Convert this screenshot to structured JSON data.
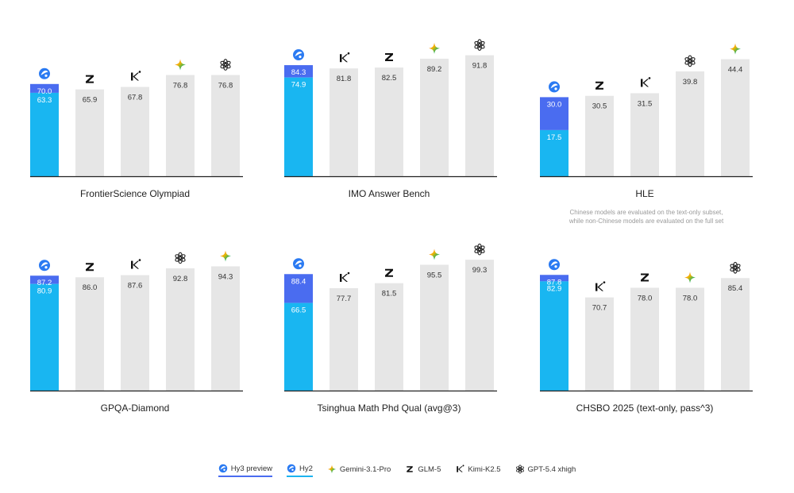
{
  "colors": {
    "hy3": "#4a6cf0",
    "hy2": "#19b6f1",
    "other": "#e6e6e6",
    "axis": "#222222"
  },
  "legend": [
    {
      "model": "hy3",
      "label": "Hy3 preview",
      "icon": "hy-logo-icon"
    },
    {
      "model": "hy2",
      "label": "Hy2",
      "icon": "hy-logo-icon"
    },
    {
      "model": "gemini",
      "label": "Gemini-3.1-Pro",
      "icon": "gemini-sparkle-icon"
    },
    {
      "model": "glm",
      "label": "GLM-5",
      "icon": "glm-z-icon"
    },
    {
      "model": "kimi",
      "label": "Kimi-K2.5",
      "icon": "kimi-k-icon"
    },
    {
      "model": "gpt",
      "label": "GPT-5.4 xhigh",
      "icon": "openai-knot-icon"
    }
  ],
  "chart_data": [
    {
      "type": "bar",
      "title": "FrontierScience Olympiad",
      "ylim": [
        0,
        100
      ],
      "bars": [
        {
          "model": "hy",
          "hy3": 70.0,
          "hy2": 63.3,
          "label_hy3": "70.0",
          "label_hy2": "63.3"
        },
        {
          "model": "glm",
          "value": 65.9,
          "label": "65.9"
        },
        {
          "model": "kimi",
          "value": 67.8,
          "label": "67.8"
        },
        {
          "model": "gemini",
          "value": 76.8,
          "label": "76.8"
        },
        {
          "model": "gpt",
          "value": 76.8,
          "label": "76.8"
        }
      ]
    },
    {
      "type": "bar",
      "title": "IMO Answer Bench",
      "ylim": [
        0,
        100
      ],
      "bars": [
        {
          "model": "hy",
          "hy3": 84.3,
          "hy2": 74.9,
          "label_hy3": "84.3",
          "label_hy2": "74.9"
        },
        {
          "model": "kimi",
          "value": 81.8,
          "label": "81.8"
        },
        {
          "model": "glm",
          "value": 82.5,
          "label": "82.5"
        },
        {
          "model": "gemini",
          "value": 89.2,
          "label": "89.2"
        },
        {
          "model": "gpt",
          "value": 91.8,
          "label": "91.8"
        }
      ]
    },
    {
      "type": "bar",
      "title": "HLE",
      "note": [
        "Chinese models are evaluated on the text-only subset,",
        "while non-Chinese models are evaluated on the full set"
      ],
      "ylim": [
        0,
        50
      ],
      "bars": [
        {
          "model": "hy",
          "hy3": 30.0,
          "hy2": 17.5,
          "label_hy3": "30.0",
          "label_hy2": "17.5"
        },
        {
          "model": "glm",
          "value": 30.5,
          "label": "30.5"
        },
        {
          "model": "kimi",
          "value": 31.5,
          "label": "31.5"
        },
        {
          "model": "gpt",
          "value": 39.8,
          "label": "39.8"
        },
        {
          "model": "gemini",
          "value": 44.4,
          "label": "44.4"
        }
      ]
    },
    {
      "type": "bar",
      "title": "GPQA-Diamond",
      "ylim": [
        0,
        100
      ],
      "bars": [
        {
          "model": "hy",
          "hy3": 87.2,
          "hy2": 80.9,
          "label_hy3": "87.2",
          "label_hy2": "80.9"
        },
        {
          "model": "glm",
          "value": 86.0,
          "label": "86.0"
        },
        {
          "model": "kimi",
          "value": 87.6,
          "label": "87.6"
        },
        {
          "model": "gpt",
          "value": 92.8,
          "label": "92.8"
        },
        {
          "model": "gemini",
          "value": 94.3,
          "label": "94.3"
        }
      ]
    },
    {
      "type": "bar",
      "title": "Tsinghua Math Phd Qual   (avg@3)",
      "ylim": [
        0,
        100
      ],
      "bars": [
        {
          "model": "hy",
          "hy3": 88.4,
          "hy2": 66.5,
          "label_hy3": "88.4",
          "label_hy2": "66.5"
        },
        {
          "model": "kimi",
          "value": 77.7,
          "label": "77.7"
        },
        {
          "model": "glm",
          "value": 81.5,
          "label": "81.5"
        },
        {
          "model": "gemini",
          "value": 95.5,
          "label": "95.5"
        },
        {
          "model": "gpt",
          "value": 99.3,
          "label": "99.3"
        }
      ]
    },
    {
      "type": "bar",
      "title": "CHSBO 2025 (text-only, pass^3)",
      "ylim": [
        0,
        100
      ],
      "bars": [
        {
          "model": "hy",
          "hy3": 87.8,
          "hy2": 82.9,
          "label_hy3": "87.8",
          "label_hy2": "82.9"
        },
        {
          "model": "kimi",
          "value": 70.7,
          "label": "70.7"
        },
        {
          "model": "glm",
          "value": 78.0,
          "label": "78.0"
        },
        {
          "model": "gemini",
          "value": 78.0,
          "label": "78.0"
        },
        {
          "model": "gpt",
          "value": 85.4,
          "label": "85.4"
        }
      ]
    }
  ]
}
